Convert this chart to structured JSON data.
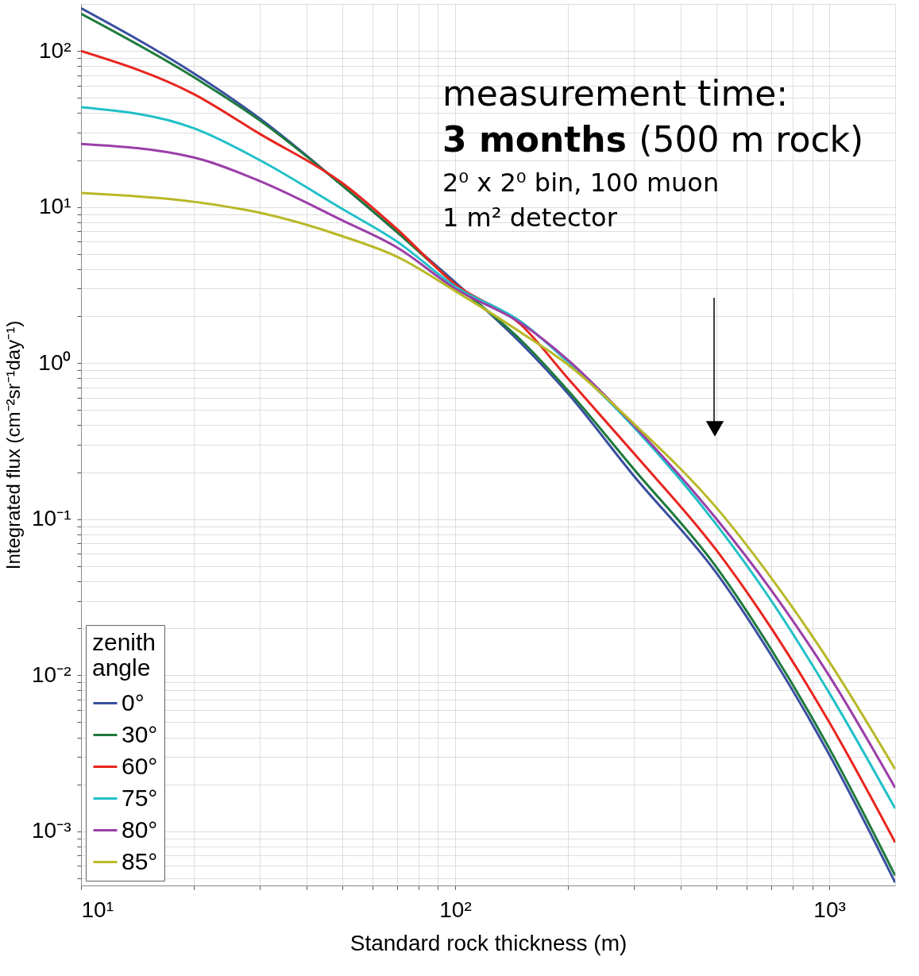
{
  "chart_data": {
    "type": "line",
    "xlabel": "Standard rock thickness (m)",
    "ylabel": "Integrated flux (cm⁻²sr⁻¹day⁻¹)",
    "legend_title": "zenith angle",
    "x": [
      10,
      20,
      30,
      50,
      70,
      100,
      150,
      200,
      300,
      500,
      700,
      1000,
      1500
    ],
    "series": [
      {
        "name": "0°",
        "color": "#3a4fa0",
        "values": [
          188,
          72,
          37,
          13.7,
          6.9,
          3.3,
          1.34,
          0.64,
          0.19,
          0.045,
          0.0134,
          0.0031,
          0.00047
        ]
      },
      {
        "name": "30°",
        "color": "#1e7a3c",
        "values": [
          173,
          68,
          36,
          13.7,
          6.9,
          3.2,
          1.4,
          0.67,
          0.21,
          0.049,
          0.0146,
          0.0034,
          0.00052
        ]
      },
      {
        "name": "60°",
        "color": "#e8251f",
        "values": [
          100,
          53,
          29.5,
          14.2,
          7.2,
          3.2,
          1.76,
          0.8,
          0.265,
          0.063,
          0.02,
          0.005,
          0.00085
        ]
      },
      {
        "name": "75°",
        "color": "#22c0c8",
        "values": [
          43.6,
          32,
          20,
          9.7,
          6.0,
          3.1,
          1.84,
          1.02,
          0.39,
          0.092,
          0.03,
          0.0077,
          0.0014
        ]
      },
      {
        "name": "80°",
        "color": "#9b3fa8",
        "values": [
          25.4,
          20.8,
          14.7,
          8.2,
          5.5,
          3.0,
          1.8,
          1.05,
          0.4,
          0.1,
          0.035,
          0.0099,
          0.0019
        ]
      },
      {
        "name": "85°",
        "color": "#b8b828",
        "values": [
          12.3,
          10.8,
          9.2,
          6.5,
          4.8,
          2.9,
          1.57,
          0.98,
          0.41,
          0.118,
          0.042,
          0.0122,
          0.0025
        ]
      }
    ],
    "xlim": [
      10,
      1500
    ],
    "ylim": [
      0.00045,
      200
    ],
    "xticks": [
      {
        "value": 10,
        "label": "10¹"
      },
      {
        "value": 20,
        "label": null
      },
      {
        "value": 30,
        "label": null
      },
      {
        "value": 40,
        "label": null
      },
      {
        "value": 50,
        "label": null
      },
      {
        "value": 60,
        "label": null
      },
      {
        "value": 70,
        "label": null
      },
      {
        "value": 80,
        "label": null
      },
      {
        "value": 90,
        "label": null
      },
      {
        "value": 100,
        "label": "10²"
      },
      {
        "value": 200,
        "label": null
      },
      {
        "value": 300,
        "label": null
      },
      {
        "value": 400,
        "label": null
      },
      {
        "value": 500,
        "label": null
      },
      {
        "value": 600,
        "label": null
      },
      {
        "value": 700,
        "label": null
      },
      {
        "value": 800,
        "label": null
      },
      {
        "value": 900,
        "label": null
      },
      {
        "value": 1000,
        "label": "10³"
      }
    ],
    "yticks": [
      {
        "value": 0.0005,
        "label": null
      },
      {
        "value": 0.0006,
        "label": null
      },
      {
        "value": 0.0007,
        "label": null
      },
      {
        "value": 0.0008,
        "label": null
      },
      {
        "value": 0.0009,
        "label": null
      },
      {
        "value": 0.001,
        "label": "10⁻³"
      },
      {
        "value": 0.002,
        "label": null
      },
      {
        "value": 0.003,
        "label": null
      },
      {
        "value": 0.004,
        "label": null
      },
      {
        "value": 0.005,
        "label": null
      },
      {
        "value": 0.006,
        "label": null
      },
      {
        "value": 0.007,
        "label": null
      },
      {
        "value": 0.008,
        "label": null
      },
      {
        "value": 0.009,
        "label": null
      },
      {
        "value": 0.01,
        "label": "10⁻²"
      },
      {
        "value": 0.02,
        "label": null
      },
      {
        "value": 0.03,
        "label": null
      },
      {
        "value": 0.04,
        "label": null
      },
      {
        "value": 0.05,
        "label": null
      },
      {
        "value": 0.06,
        "label": null
      },
      {
        "value": 0.07,
        "label": null
      },
      {
        "value": 0.08,
        "label": null
      },
      {
        "value": 0.09,
        "label": null
      },
      {
        "value": 0.1,
        "label": "10⁻¹"
      },
      {
        "value": 0.2,
        "label": null
      },
      {
        "value": 0.3,
        "label": null
      },
      {
        "value": 0.4,
        "label": null
      },
      {
        "value": 0.5,
        "label": null
      },
      {
        "value": 0.6,
        "label": null
      },
      {
        "value": 0.7,
        "label": null
      },
      {
        "value": 0.8,
        "label": null
      },
      {
        "value": 0.9,
        "label": null
      },
      {
        "value": 1,
        "label": "10⁰"
      },
      {
        "value": 2,
        "label": null
      },
      {
        "value": 3,
        "label": null
      },
      {
        "value": 4,
        "label": null
      },
      {
        "value": 5,
        "label": null
      },
      {
        "value": 6,
        "label": null
      },
      {
        "value": 7,
        "label": null
      },
      {
        "value": 8,
        "label": null
      },
      {
        "value": 9,
        "label": null
      },
      {
        "value": 10,
        "label": "10¹"
      },
      {
        "value": 20,
        "label": null
      },
      {
        "value": 30,
        "label": null
      },
      {
        "value": 40,
        "label": null
      },
      {
        "value": 50,
        "label": null
      },
      {
        "value": 60,
        "label": null
      },
      {
        "value": 70,
        "label": null
      },
      {
        "value": 80,
        "label": null
      },
      {
        "value": 90,
        "label": null
      },
      {
        "value": 100,
        "label": "10²"
      }
    ],
    "log": "xy",
    "grid": true,
    "legend": "bottom left",
    "annotations": [
      "measurement time:",
      "3 months",
      "(500 m rock)",
      "2⁰ x 2⁰  bin, 100 muon",
      "1 m² detector"
    ]
  }
}
